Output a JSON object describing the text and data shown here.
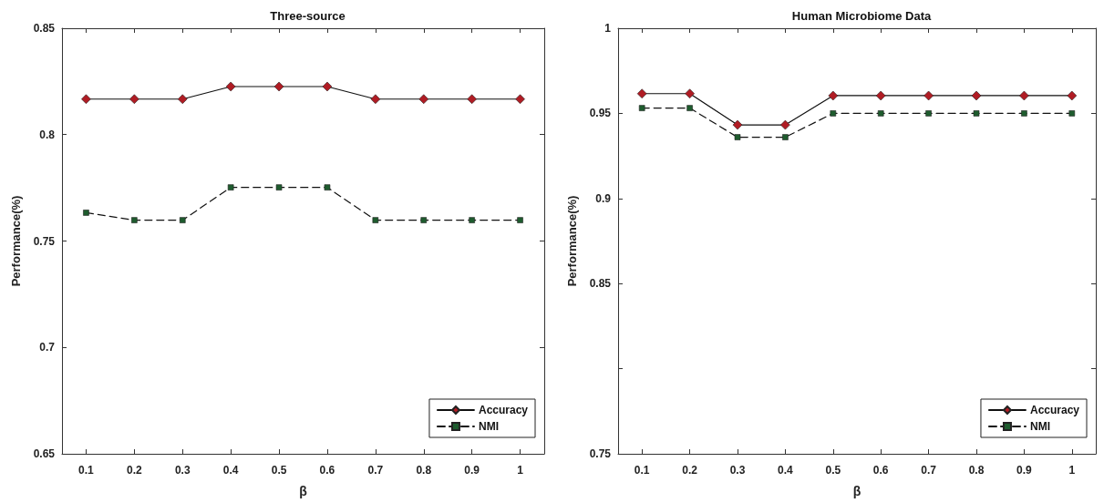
{
  "chart_data": [
    {
      "type": "line",
      "title": "Three-source",
      "xlabel": "β",
      "ylabel": "Performance(%)",
      "x": [
        0.1,
        0.2,
        0.3,
        0.4,
        0.5,
        0.6,
        0.7,
        0.8,
        0.9,
        1
      ],
      "series": [
        {
          "name": "Accuracy",
          "color": "#b01c24",
          "marker": "diamond",
          "line_style": "solid",
          "values": [
            0.8167,
            0.8167,
            0.8167,
            0.8226,
            0.8226,
            0.8226,
            0.8167,
            0.8167,
            0.8167,
            0.8167
          ]
        },
        {
          "name": "NMI",
          "color": "#1e5c2e",
          "marker": "square",
          "line_style": "dashed",
          "values": [
            0.7633,
            0.7598,
            0.7598,
            0.7752,
            0.7752,
            0.7752,
            0.7598,
            0.7598,
            0.7598,
            0.7598
          ]
        }
      ],
      "xlim": [
        0.05,
        1.05
      ],
      "xticks": [
        0.1,
        0.2,
        0.3,
        0.4,
        0.5,
        0.6,
        0.7,
        0.8,
        0.9,
        1
      ],
      "ylim": [
        0.65,
        0.85
      ],
      "yticks": [
        0.65,
        0.7,
        0.75,
        0.8,
        0.85
      ],
      "grid": false,
      "legend": "bottom right"
    },
    {
      "type": "line",
      "title": "Human Microbiome Data",
      "xlabel": "β",
      "ylabel": "Performance(%)",
      "x": [
        0.1,
        0.2,
        0.3,
        0.4,
        0.5,
        0.6,
        0.7,
        0.8,
        0.9,
        1
      ],
      "series": [
        {
          "name": "Accuracy",
          "color": "#b01c24",
          "marker": "diamond",
          "line_style": "solid",
          "values": [
            0.9616,
            0.9616,
            0.9432,
            0.9432,
            0.9604,
            0.9604,
            0.9604,
            0.9604,
            0.9604,
            0.9604
          ]
        },
        {
          "name": "NMI",
          "color": "#1e5c2e",
          "marker": "square",
          "line_style": "dashed",
          "values": [
            0.9531,
            0.9531,
            0.936,
            0.936,
            0.95,
            0.95,
            0.95,
            0.95,
            0.95,
            0.95
          ]
        }
      ],
      "xlim": [
        0.05,
        1.05
      ],
      "xticks": [
        0.1,
        0.2,
        0.3,
        0.4,
        0.5,
        0.6,
        0.7,
        0.8,
        0.9,
        1
      ],
      "ylim": [
        0.75,
        1
      ],
      "yticks": [
        0.75,
        {
          "value": 0.8,
          "label": null
        },
        0.85,
        0.9,
        0.95,
        1
      ],
      "grid": false,
      "legend": "bottom right"
    }
  ]
}
